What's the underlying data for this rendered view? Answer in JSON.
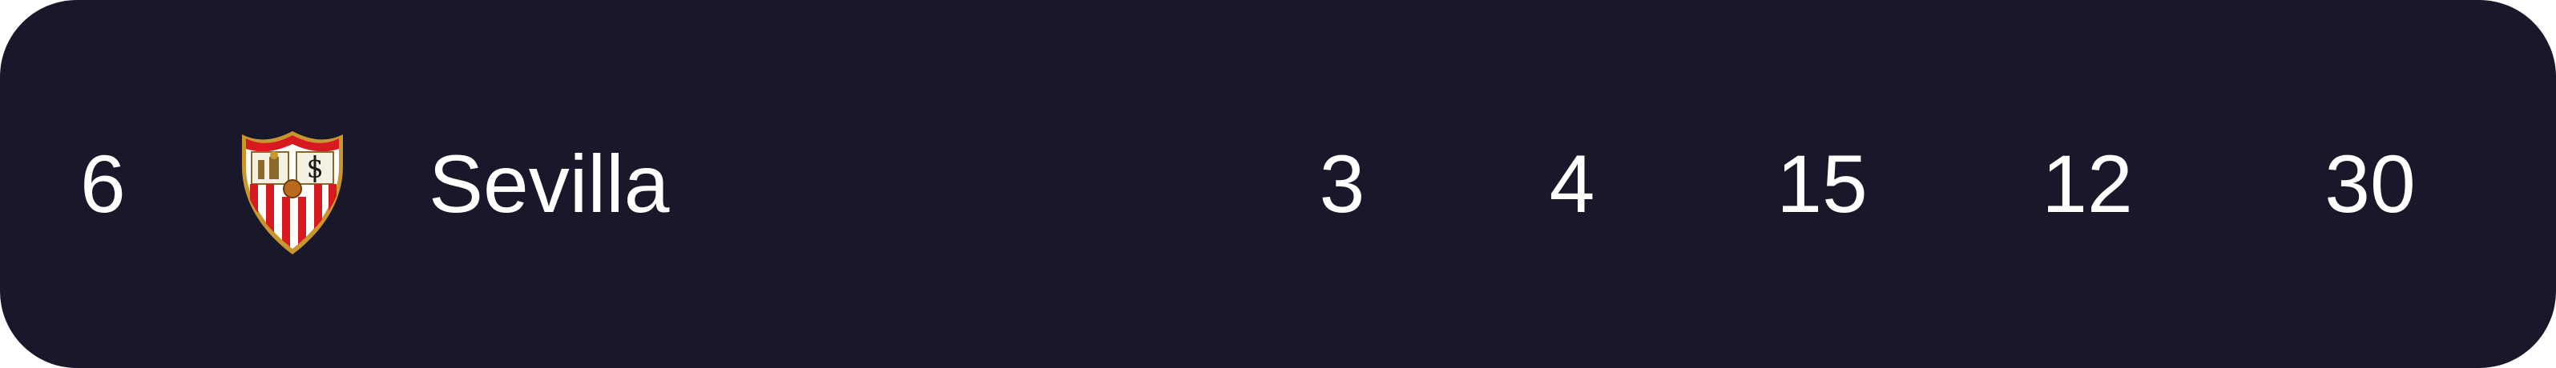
{
  "standings_row": {
    "position": "6",
    "team_name": "Sevilla",
    "crest_icon": "sevilla-crest-icon",
    "stats": [
      "3",
      "4",
      "15",
      "12",
      "30"
    ]
  },
  "colors": {
    "row_background": "#19182a",
    "text": "#ffffff",
    "crest_red": "#d71920",
    "crest_gold": "#c9962b"
  }
}
